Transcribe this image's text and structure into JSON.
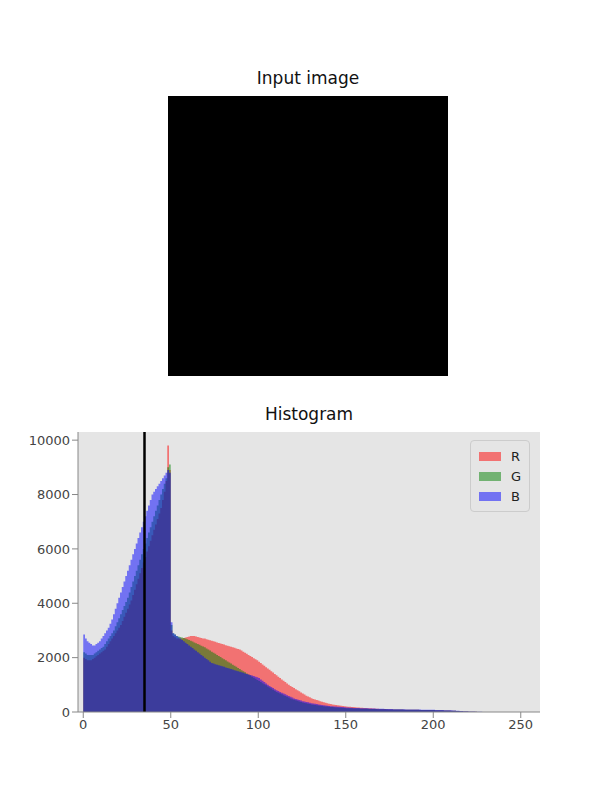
{
  "image": {
    "title": "Input image"
  },
  "chart_data": {
    "type": "histogram",
    "title": "Histogram",
    "bins": [
      0,
      1,
      2,
      3,
      4,
      5,
      6,
      7,
      8,
      9,
      10,
      11,
      12,
      13,
      14,
      15,
      16,
      17,
      18,
      19,
      20,
      21,
      22,
      23,
      24,
      25,
      26,
      27,
      28,
      29,
      30,
      31,
      32,
      33,
      34,
      35,
      36,
      37,
      38,
      39,
      40,
      41,
      42,
      43,
      44,
      45,
      46,
      47,
      48,
      49,
      50,
      51,
      52,
      53,
      54,
      55,
      56,
      57,
      58,
      59,
      60,
      61,
      62,
      63,
      64,
      65,
      66,
      67,
      68,
      69,
      70,
      71,
      72,
      73,
      74,
      75,
      76,
      77,
      78,
      79,
      80,
      81,
      82,
      83,
      84,
      85,
      86,
      87,
      88,
      89,
      90,
      91,
      92,
      93,
      94,
      95,
      96,
      97,
      98,
      99,
      100,
      101,
      102,
      103,
      104,
      105,
      106,
      107,
      108,
      109,
      110,
      111,
      112,
      113,
      114,
      115,
      116,
      117,
      118,
      119,
      120,
      121,
      122,
      123,
      124,
      125,
      126,
      127,
      128,
      129,
      130,
      131,
      132,
      133,
      134,
      135,
      136,
      137,
      138,
      139,
      140,
      141,
      142,
      143,
      144,
      145,
      146,
      147,
      148,
      149,
      150,
      151,
      152,
      153,
      154,
      155,
      156,
      157,
      158,
      159,
      160,
      161,
      162,
      163,
      164,
      165,
      166,
      167,
      168,
      169,
      170,
      171,
      172,
      173,
      174,
      175,
      176,
      177,
      178,
      179,
      180,
      181,
      182,
      183,
      184,
      185,
      186,
      187,
      188,
      189,
      190,
      191,
      192,
      193,
      194,
      195,
      196,
      197,
      198,
      199,
      200,
      201,
      202,
      203,
      204,
      205,
      206,
      207,
      208,
      209,
      210,
      211,
      212,
      213,
      214,
      215,
      216,
      217,
      218,
      219,
      220,
      221,
      222,
      223,
      224,
      225,
      226,
      227,
      228,
      229,
      230,
      231,
      232,
      233,
      234,
      235,
      236,
      237,
      238,
      239,
      240,
      241,
      242,
      243,
      244,
      245,
      246,
      247,
      248,
      249,
      250,
      251,
      252,
      253,
      254,
      255,
      256
    ],
    "series": [
      {
        "name": "R",
        "color": "#ff0000",
        "values": [
          2000,
          1950,
          1900,
          1900,
          1900,
          1950,
          2000,
          2050,
          2100,
          2150,
          2200,
          2250,
          2300,
          2400,
          2500,
          2600,
          2700,
          2800,
          2900,
          3000,
          3100,
          3200,
          3350,
          3500,
          3650,
          3800,
          3950,
          4100,
          4300,
          4500,
          4700,
          4900,
          5100,
          5300,
          5500,
          5700,
          5900,
          6100,
          6300,
          6500,
          6700,
          6900,
          7100,
          7300,
          7500,
          7800,
          8100,
          8500,
          9800,
          8900,
          3000,
          2800,
          2750,
          2700,
          2700,
          2700,
          2700,
          2720,
          2740,
          2760,
          2780,
          2800,
          2800,
          2800,
          2780,
          2760,
          2740,
          2720,
          2700,
          2700,
          2680,
          2660,
          2640,
          2620,
          2600,
          2580,
          2560,
          2540,
          2520,
          2500,
          2480,
          2460,
          2440,
          2420,
          2400,
          2380,
          2360,
          2340,
          2320,
          2300,
          2260,
          2220,
          2180,
          2140,
          2100,
          2060,
          2020,
          1980,
          1940,
          1900,
          1850,
          1800,
          1750,
          1700,
          1650,
          1600,
          1550,
          1500,
          1450,
          1400,
          1350,
          1300,
          1250,
          1200,
          1150,
          1100,
          1050,
          1000,
          960,
          920,
          880,
          840,
          800,
          760,
          720,
          680,
          640,
          600,
          570,
          540,
          510,
          480,
          460,
          440,
          420,
          400,
          380,
          360,
          340,
          320,
          300,
          290,
          280,
          270,
          260,
          250,
          240,
          230,
          220,
          210,
          200,
          195,
          190,
          185,
          180,
          175,
          170,
          165,
          160,
          155,
          150,
          146,
          142,
          138,
          134,
          130,
          126,
          122,
          118,
          114,
          110,
          108,
          106,
          104,
          102,
          100,
          98,
          96,
          94,
          92,
          90,
          89,
          88,
          87,
          86,
          85,
          84,
          83,
          82,
          81,
          80,
          79,
          78,
          77,
          76,
          75,
          74,
          73,
          72,
          71,
          70,
          68,
          66,
          64,
          62,
          60,
          58,
          56,
          54,
          52,
          50,
          46,
          42,
          38,
          34,
          30,
          26,
          22,
          18,
          14,
          12,
          10,
          8,
          6,
          5,
          4,
          3,
          2,
          1,
          1,
          0,
          0,
          0,
          0,
          0,
          0,
          0,
          0,
          0,
          0,
          0,
          0,
          0,
          0,
          0,
          0,
          0,
          0,
          0,
          0,
          0,
          0,
          0,
          0,
          0,
          0
        ]
      },
      {
        "name": "G",
        "color": "#008000",
        "values": [
          2200,
          2150,
          2100,
          2100,
          2100,
          2100,
          2150,
          2200,
          2250,
          2300,
          2350,
          2400,
          2500,
          2600,
          2700,
          2800,
          2900,
          3000,
          3150,
          3300,
          3450,
          3600,
          3750,
          3900,
          4050,
          4200,
          4400,
          4600,
          4800,
          5000,
          5200,
          5400,
          5600,
          5800,
          6000,
          6200,
          6400,
          6600,
          6800,
          7000,
          7200,
          7400,
          7600,
          7800,
          8000,
          8200,
          8400,
          8600,
          9000,
          9100,
          3200,
          2900,
          2850,
          2800,
          2780,
          2760,
          2740,
          2720,
          2700,
          2680,
          2650,
          2620,
          2590,
          2560,
          2530,
          2500,
          2470,
          2440,
          2410,
          2380,
          2340,
          2300,
          2260,
          2220,
          2180,
          2140,
          2100,
          2060,
          2020,
          1980,
          1940,
          1900,
          1860,
          1820,
          1780,
          1740,
          1700,
          1660,
          1620,
          1580,
          1540,
          1500,
          1460,
          1420,
          1380,
          1340,
          1300,
          1260,
          1220,
          1180,
          1140,
          1100,
          1060,
          1020,
          980,
          940,
          900,
          860,
          820,
          780,
          740,
          710,
          680,
          650,
          620,
          590,
          560,
          530,
          500,
          470,
          450,
          430,
          410,
          390,
          370,
          350,
          335,
          320,
          305,
          290,
          280,
          270,
          260,
          250,
          240,
          230,
          222,
          214,
          206,
          198,
          190,
          185,
          180,
          175,
          170,
          165,
          160,
          155,
          150,
          145,
          140,
          138,
          136,
          134,
          132,
          130,
          128,
          126,
          124,
          122,
          120,
          118,
          116,
          114,
          112,
          110,
          108,
          106,
          104,
          102,
          100,
          99,
          98,
          97,
          96,
          95,
          94,
          93,
          92,
          91,
          90,
          89,
          88,
          87,
          86,
          85,
          84,
          83,
          82,
          81,
          80,
          79,
          78,
          77,
          76,
          75,
          74,
          73,
          72,
          71,
          70,
          68,
          66,
          64,
          62,
          60,
          58,
          56,
          54,
          52,
          50,
          46,
          42,
          38,
          34,
          30,
          26,
          22,
          18,
          14,
          12,
          10,
          8,
          6,
          5,
          4,
          3,
          2,
          1,
          1,
          0,
          0,
          0,
          0,
          0,
          0,
          0,
          0,
          0,
          0,
          0,
          0,
          0,
          0,
          0,
          0,
          0,
          0,
          0,
          0,
          0,
          0,
          0,
          0,
          0,
          0
        ]
      },
      {
        "name": "B",
        "color": "#0000ff",
        "values": [
          2850,
          2700,
          2600,
          2550,
          2500,
          2450,
          2450,
          2500,
          2550,
          2600,
          2700,
          2800,
          2900,
          3000,
          3100,
          3250,
          3400,
          3600,
          3800,
          4000,
          4200,
          4400,
          4600,
          4800,
          5000,
          5200,
          5400,
          5600,
          5800,
          6000,
          6200,
          6400,
          6600,
          6800,
          7000,
          7200,
          7400,
          7600,
          7800,
          8000,
          8100,
          8200,
          8300,
          8400,
          8500,
          8600,
          8700,
          8800,
          8900,
          8800,
          3300,
          2900,
          2850,
          2800,
          2750,
          2700,
          2650,
          2600,
          2550,
          2500,
          2450,
          2400,
          2350,
          2300,
          2250,
          2200,
          2150,
          2100,
          2050,
          2000,
          1950,
          1900,
          1850,
          1800,
          1780,
          1760,
          1740,
          1720,
          1700,
          1680,
          1660,
          1640,
          1620,
          1600,
          1580,
          1560,
          1540,
          1520,
          1500,
          1480,
          1460,
          1440,
          1420,
          1400,
          1380,
          1360,
          1340,
          1320,
          1300,
          1280,
          1250,
          1200,
          1150,
          1100,
          1050,
          1000,
          960,
          920,
          880,
          840,
          800,
          770,
          740,
          710,
          680,
          650,
          620,
          590,
          560,
          530,
          500,
          480,
          460,
          440,
          420,
          400,
          385,
          370,
          355,
          340,
          325,
          310,
          300,
          290,
          280,
          270,
          260,
          250,
          240,
          230,
          220,
          215,
          210,
          205,
          200,
          195,
          190,
          185,
          180,
          175,
          170,
          165,
          160,
          155,
          150,
          148,
          146,
          144,
          142,
          140,
          138,
          136,
          134,
          132,
          130,
          128,
          126,
          124,
          122,
          120,
          118,
          116,
          114,
          112,
          110,
          108,
          106,
          104,
          102,
          100,
          100,
          99,
          98,
          97,
          96,
          95,
          94,
          93,
          92,
          91,
          90,
          89,
          88,
          87,
          86,
          85,
          84,
          83,
          82,
          81,
          80,
          78,
          76,
          74,
          72,
          70,
          68,
          66,
          64,
          62,
          60,
          56,
          52,
          48,
          44,
          40,
          36,
          32,
          28,
          24,
          20,
          18,
          16,
          14,
          12,
          10,
          8,
          6,
          4,
          2,
          0,
          0,
          0,
          0,
          0,
          0,
          0,
          0,
          0,
          0,
          0,
          0,
          0,
          0,
          0,
          0,
          0,
          0,
          0,
          0,
          0,
          0,
          0,
          0,
          0,
          0
        ]
      }
    ],
    "xlim": [
      -3,
      261
    ],
    "xticks": [
      0,
      50,
      100,
      150,
      200,
      250
    ],
    "ylim": [
      0,
      10300
    ],
    "yticks": [
      0,
      2000,
      4000,
      6000,
      8000,
      10000
    ],
    "grid": false,
    "legend": "upper right",
    "threshold": 35
  }
}
